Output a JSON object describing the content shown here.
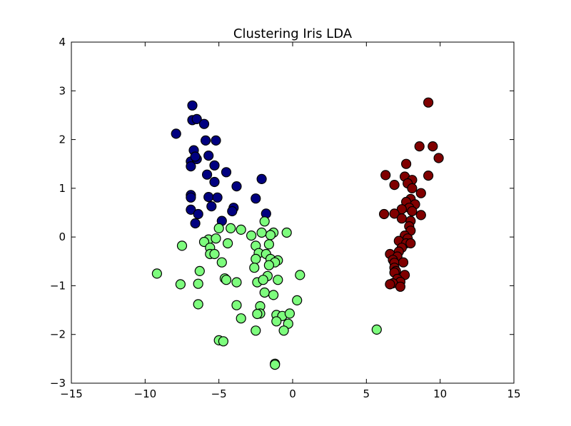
{
  "chart_data": {
    "type": "scatter",
    "title": "Clustering Iris LDA",
    "xlabel": "",
    "ylabel": "",
    "xlim": [
      -15,
      15
    ],
    "ylim": [
      -3,
      4
    ],
    "xticks": [
      -15,
      -10,
      -5,
      0,
      5,
      10,
      15
    ],
    "yticks": [
      -3,
      -2,
      -1,
      0,
      1,
      2,
      3,
      4
    ],
    "xtick_labels": [
      "−15",
      "−10",
      "−5",
      "0",
      "5",
      "10",
      "15"
    ],
    "ytick_labels": [
      "−3",
      "−2",
      "−1",
      "0",
      "1",
      "2",
      "3",
      "4"
    ],
    "grid": false,
    "legend": "none",
    "series": [
      {
        "color": "#000080",
        "points": [
          [
            -6.8,
            2.7
          ],
          [
            -6.8,
            2.4
          ],
          [
            -6.5,
            2.42
          ],
          [
            -6.0,
            2.32
          ],
          [
            -7.9,
            2.12
          ],
          [
            -5.9,
            1.98
          ],
          [
            -5.2,
            1.98
          ],
          [
            -6.7,
            1.78
          ],
          [
            -6.9,
            1.55
          ],
          [
            -6.5,
            1.6
          ],
          [
            -6.6,
            1.65
          ],
          [
            -5.7,
            1.67
          ],
          [
            -5.3,
            1.47
          ],
          [
            -6.9,
            1.45
          ],
          [
            -4.5,
            1.33
          ],
          [
            -5.8,
            1.28
          ],
          [
            -5.3,
            1.13
          ],
          [
            -2.1,
            1.19
          ],
          [
            -3.8,
            1.04
          ],
          [
            -6.9,
            0.86
          ],
          [
            -6.9,
            0.81
          ],
          [
            -5.7,
            0.82
          ],
          [
            -5.1,
            0.81
          ],
          [
            -2.5,
            0.79
          ],
          [
            -5.5,
            0.63
          ],
          [
            -4.0,
            0.6
          ],
          [
            -4.1,
            0.53
          ],
          [
            -6.9,
            0.56
          ],
          [
            -6.4,
            0.47
          ],
          [
            -1.8,
            0.48
          ],
          [
            -4.8,
            0.33
          ],
          [
            -6.6,
            0.28
          ]
        ]
      },
      {
        "color": "#7dfc7d",
        "points": [
          [
            -5.0,
            0.18
          ],
          [
            -4.2,
            0.18
          ],
          [
            -3.5,
            0.15
          ],
          [
            -1.9,
            0.32
          ],
          [
            -1.3,
            0.09
          ],
          [
            -0.4,
            0.09
          ],
          [
            -2.1,
            0.09
          ],
          [
            -2.8,
            0.03
          ],
          [
            -1.5,
            0.04
          ],
          [
            -5.7,
            -0.05
          ],
          [
            -5.2,
            -0.03
          ],
          [
            -6.0,
            -0.1
          ],
          [
            -4.4,
            -0.13
          ],
          [
            -7.5,
            -0.18
          ],
          [
            -5.6,
            -0.22
          ],
          [
            -2.5,
            -0.18
          ],
          [
            -1.6,
            -0.15
          ],
          [
            -5.6,
            -0.35
          ],
          [
            -5.3,
            -0.35
          ],
          [
            -2.3,
            -0.33
          ],
          [
            -1.8,
            -0.35
          ],
          [
            -2.5,
            -0.45
          ],
          [
            -1.5,
            -0.45
          ],
          [
            -1.0,
            -0.48
          ],
          [
            -1.2,
            -0.52
          ],
          [
            -4.8,
            -0.52
          ],
          [
            -1.6,
            -0.58
          ],
          [
            -2.6,
            -0.63
          ],
          [
            -6.3,
            -0.7
          ],
          [
            -9.2,
            -0.75
          ],
          [
            -1.7,
            -0.8
          ],
          [
            0.5,
            -0.78
          ],
          [
            -4.6,
            -0.85
          ],
          [
            -4.5,
            -0.88
          ],
          [
            -3.8,
            -0.93
          ],
          [
            -2.4,
            -0.93
          ],
          [
            -2.0,
            -0.88
          ],
          [
            -1.0,
            -0.88
          ],
          [
            -7.6,
            -0.97
          ],
          [
            -6.4,
            -0.96
          ],
          [
            -1.9,
            -1.14
          ],
          [
            -1.3,
            -1.19
          ],
          [
            0.3,
            -1.3
          ],
          [
            -6.4,
            -1.38
          ],
          [
            -3.8,
            -1.4
          ],
          [
            -2.2,
            -1.42
          ],
          [
            -2.2,
            -1.57
          ],
          [
            -2.4,
            -1.58
          ],
          [
            -1.1,
            -1.6
          ],
          [
            -0.7,
            -1.62
          ],
          [
            -0.2,
            -1.57
          ],
          [
            -3.5,
            -1.67
          ],
          [
            -1.1,
            -1.73
          ],
          [
            -0.3,
            -1.78
          ],
          [
            -0.6,
            -1.92
          ],
          [
            -2.5,
            -1.92
          ],
          [
            5.7,
            -1.9
          ],
          [
            -5.0,
            -2.12
          ],
          [
            -4.7,
            -2.14
          ],
          [
            -1.2,
            -2.6
          ],
          [
            -1.2,
            -2.62
          ]
        ]
      },
      {
        "color": "#800000",
        "points": [
          [
            9.2,
            2.76
          ],
          [
            8.6,
            1.86
          ],
          [
            9.5,
            1.86
          ],
          [
            9.9,
            1.62
          ],
          [
            7.7,
            1.5
          ],
          [
            6.3,
            1.27
          ],
          [
            7.6,
            1.24
          ],
          [
            9.2,
            1.26
          ],
          [
            8.1,
            1.17
          ],
          [
            6.9,
            1.07
          ],
          [
            7.8,
            1.1
          ],
          [
            8.1,
            1.0
          ],
          [
            8.7,
            0.9
          ],
          [
            8.0,
            0.78
          ],
          [
            7.7,
            0.72
          ],
          [
            8.3,
            0.67
          ],
          [
            7.9,
            0.6
          ],
          [
            7.4,
            0.57
          ],
          [
            8.1,
            0.53
          ],
          [
            6.2,
            0.47
          ],
          [
            6.9,
            0.48
          ],
          [
            8.7,
            0.45
          ],
          [
            7.4,
            0.38
          ],
          [
            8.0,
            0.33
          ],
          [
            7.9,
            0.22
          ],
          [
            8.0,
            0.13
          ],
          [
            7.6,
            0.03
          ],
          [
            7.8,
            -0.03
          ],
          [
            7.2,
            -0.08
          ],
          [
            7.7,
            -0.13
          ],
          [
            8.0,
            -0.13
          ],
          [
            7.4,
            -0.22
          ],
          [
            7.2,
            -0.3
          ],
          [
            6.6,
            -0.35
          ],
          [
            7.1,
            -0.4
          ],
          [
            6.8,
            -0.47
          ],
          [
            6.9,
            -0.53
          ],
          [
            7.5,
            -0.52
          ],
          [
            6.9,
            -0.63
          ],
          [
            7.0,
            -0.7
          ],
          [
            6.9,
            -0.73
          ],
          [
            7.6,
            -0.78
          ],
          [
            7.1,
            -0.86
          ],
          [
            7.3,
            -0.92
          ],
          [
            6.8,
            -0.95
          ],
          [
            6.6,
            -0.97
          ],
          [
            7.3,
            -1.02
          ]
        ]
      }
    ]
  }
}
